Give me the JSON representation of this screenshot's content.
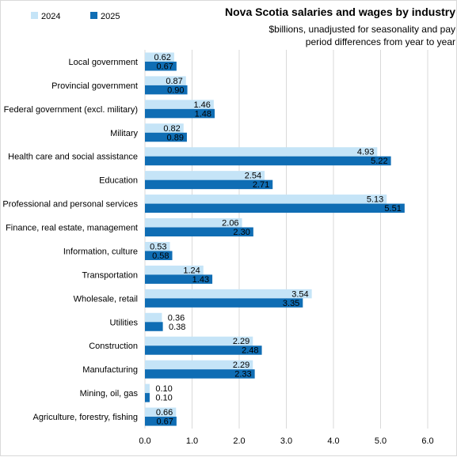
{
  "chart_data": {
    "type": "bar",
    "orientation": "horizontal",
    "title": "Nova Scotia salaries and wages by industry",
    "subtitle_lines": [
      "$billions, unadjusted for seasonality and pay",
      "period differences from year to year"
    ],
    "categories": [
      "Local government",
      "Provincial government",
      "Federal government (excl. military)",
      "Military",
      "Health care and social assistance",
      "Education",
      "Professional and personal services",
      "Finance, real estate, management",
      "Information, culture",
      "Transportation",
      "Wholesale, retail",
      "Utilities",
      "Construction",
      "Manufacturing",
      "Mining, oil, gas",
      "Agriculture, forestry, fishing"
    ],
    "series": [
      {
        "name": "2024",
        "color": "#c5e4f7",
        "values": [
          0.62,
          0.87,
          1.46,
          0.82,
          4.93,
          2.54,
          5.13,
          2.06,
          0.53,
          1.24,
          3.54,
          0.36,
          2.29,
          2.29,
          0.1,
          0.66
        ],
        "labels": [
          "0.62",
          "0.87",
          "1.46",
          "0.82",
          "4.93",
          "2.54",
          "5.13",
          "2.06",
          "0.53",
          "1.24",
          "3.54",
          "0.36",
          "2.29",
          "2.29",
          "0.10",
          "0.66"
        ]
      },
      {
        "name": "2025",
        "color": "#0f6db4",
        "values": [
          0.67,
          0.9,
          1.48,
          0.89,
          5.22,
          2.71,
          5.51,
          2.3,
          0.58,
          1.43,
          3.35,
          0.38,
          2.48,
          2.33,
          0.1,
          0.67
        ],
        "labels": [
          "0.67",
          "0.90",
          "1.48",
          "0.89",
          "5.22",
          "2.71",
          "5.51",
          "2.30",
          "0.58",
          "1.43",
          "3.35",
          "0.38",
          "2.48",
          "2.33",
          "0.10",
          "0.67"
        ]
      }
    ],
    "xlim": [
      0,
      6.0
    ],
    "xticks": [
      0.0,
      1.0,
      2.0,
      3.0,
      4.0,
      5.0,
      6.0
    ],
    "xtick_labels": [
      "0.0",
      "1.0",
      "2.0",
      "3.0",
      "4.0",
      "5.0",
      "6.0"
    ],
    "gridlines": "vertical",
    "legend_position": "top-left",
    "gridline_color": "#d9d9d9"
  }
}
